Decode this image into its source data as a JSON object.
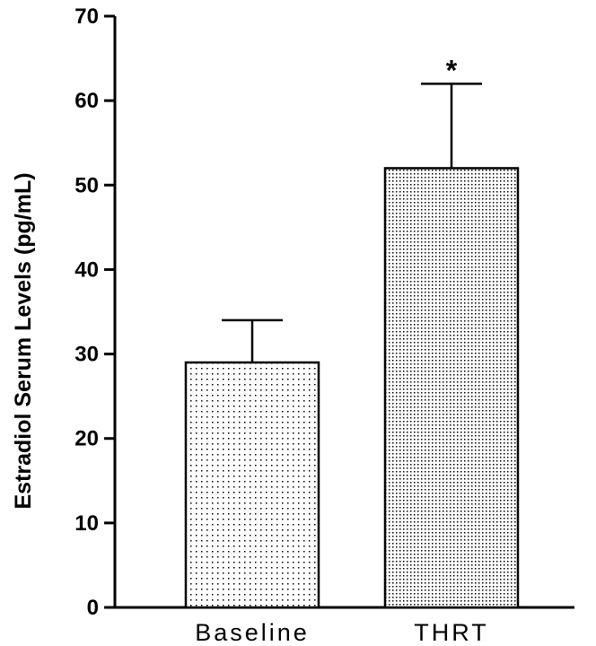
{
  "chart_data": {
    "type": "bar",
    "title": "",
    "xlabel": "",
    "ylabel": "Estradiol Serum Levels (pg/mL)",
    "categories": [
      "Baseline",
      "THRT"
    ],
    "values": [
      29,
      52
    ],
    "error_upper": [
      34,
      62
    ],
    "annotations": [
      {
        "category": "THRT",
        "text": "*"
      }
    ],
    "ylim": [
      0,
      70
    ],
    "yticks": [
      0,
      10,
      20,
      30,
      40,
      50,
      60,
      70
    ],
    "grid": false,
    "legend": "none",
    "bar_patterns": [
      "sparse-dots",
      "dense-dots"
    ]
  },
  "colors": {
    "axis": "#000000",
    "bar_fill": "#ffffff",
    "dot": "#000000"
  }
}
